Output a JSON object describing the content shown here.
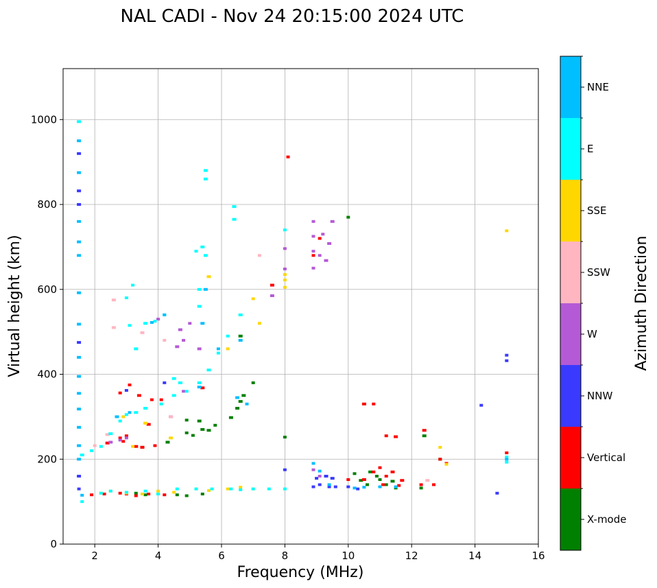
{
  "chart_data": {
    "type": "scatter",
    "title": "NAL CADI - Nov 24 20:15:00 2024 UTC",
    "xlabel": "Frequency (MHz)",
    "ylabel": "Virtual height (km)",
    "xlim": [
      1,
      16
    ],
    "ylim": [
      0,
      1120
    ],
    "xticks": [
      2,
      4,
      6,
      8,
      10,
      12,
      14,
      16
    ],
    "yticks": [
      0,
      200,
      400,
      600,
      800,
      1000
    ],
    "grid": true,
    "colorbar": {
      "label": "Azimuth Direction",
      "placement": "right",
      "categories": [
        {
          "name": "X-mode",
          "color": "#008000"
        },
        {
          "name": "Vertical",
          "color": "#ff0000"
        },
        {
          "name": "NNW",
          "color": "#3a3aff"
        },
        {
          "name": "W",
          "color": "#b55ad6"
        },
        {
          "name": "SSW",
          "color": "#ffb6c1"
        },
        {
          "name": "SSE",
          "color": "#ffd700"
        },
        {
          "name": "E",
          "color": "#00ffff"
        },
        {
          "name": "NNE",
          "color": "#00bfff"
        }
      ]
    },
    "series": [
      {
        "name": "X-mode",
        "points": [
          [
            3.3,
            120
          ],
          [
            3.6,
            116
          ],
          [
            4.0,
            118
          ],
          [
            4.6,
            116
          ],
          [
            4.9,
            114
          ],
          [
            5.4,
            118
          ],
          [
            3.5,
            228
          ],
          [
            4.3,
            240
          ],
          [
            4.9,
            262
          ],
          [
            5.1,
            256
          ],
          [
            5.4,
            270
          ],
          [
            5.6,
            268
          ],
          [
            5.8,
            280
          ],
          [
            6.3,
            298
          ],
          [
            6.5,
            320
          ],
          [
            6.6,
            336
          ],
          [
            6.7,
            350
          ],
          [
            7.0,
            380
          ],
          [
            4.9,
            292
          ],
          [
            5.3,
            290
          ],
          [
            8.0,
            252
          ],
          [
            10.0,
            770
          ],
          [
            10.2,
            166
          ],
          [
            10.4,
            150
          ],
          [
            10.6,
            140
          ],
          [
            10.7,
            170
          ],
          [
            10.9,
            160
          ],
          [
            11.0,
            152
          ],
          [
            11.2,
            140
          ],
          [
            11.4,
            148
          ],
          [
            11.5,
            132
          ],
          [
            12.3,
            132
          ],
          [
            12.4,
            255
          ],
          [
            12.9,
            200
          ],
          [
            6.6,
            490
          ]
        ]
      },
      {
        "name": "Vertical",
        "points": [
          [
            1.9,
            116
          ],
          [
            2.3,
            118
          ],
          [
            2.8,
            120
          ],
          [
            3.0,
            118
          ],
          [
            3.3,
            114
          ],
          [
            3.7,
            118
          ],
          [
            4.2,
            116
          ],
          [
            2.4,
            238
          ],
          [
            2.8,
            250
          ],
          [
            3.0,
            255
          ],
          [
            3.3,
            230
          ],
          [
            3.5,
            228
          ],
          [
            3.9,
            232
          ],
          [
            2.8,
            356
          ],
          [
            3.1,
            375
          ],
          [
            3.4,
            350
          ],
          [
            3.8,
            340
          ],
          [
            4.1,
            340
          ],
          [
            5.4,
            368
          ],
          [
            8.1,
            912
          ],
          [
            8.9,
            680
          ],
          [
            9.1,
            720
          ],
          [
            10.0,
            152
          ],
          [
            10.5,
            152
          ],
          [
            10.8,
            170
          ],
          [
            11.0,
            180
          ],
          [
            11.1,
            140
          ],
          [
            11.2,
            160
          ],
          [
            11.4,
            170
          ],
          [
            11.6,
            138
          ],
          [
            11.7,
            150
          ],
          [
            10.5,
            330
          ],
          [
            10.8,
            330
          ],
          [
            11.2,
            255
          ],
          [
            11.5,
            253
          ],
          [
            12.3,
            140
          ],
          [
            12.7,
            140
          ],
          [
            12.9,
            200
          ],
          [
            13.1,
            190
          ],
          [
            15.0,
            215
          ],
          [
            12.4,
            268
          ],
          [
            7.6,
            610
          ],
          [
            3.7,
            282
          ],
          [
            2.9,
            242
          ]
        ]
      },
      {
        "name": "NNW",
        "points": [
          [
            1.5,
            475
          ],
          [
            1.5,
            832
          ],
          [
            1.5,
            920
          ],
          [
            1.5,
            800
          ],
          [
            1.5,
            160
          ],
          [
            1.5,
            130
          ],
          [
            8.9,
            135
          ],
          [
            9.1,
            140
          ],
          [
            9.4,
            135
          ],
          [
            9.6,
            135
          ],
          [
            10.0,
            135
          ],
          [
            10.3,
            130
          ],
          [
            9.0,
            155
          ],
          [
            9.3,
            160
          ],
          [
            9.5,
            155
          ],
          [
            8.0,
            175
          ],
          [
            15.0,
            432
          ],
          [
            15.0,
            445
          ],
          [
            14.2,
            327
          ],
          [
            14.7,
            120
          ],
          [
            4.2,
            380
          ],
          [
            3.0,
            362
          ]
        ]
      },
      {
        "name": "W",
        "points": [
          [
            8.9,
            760
          ],
          [
            9.2,
            730
          ],
          [
            9.5,
            760
          ],
          [
            8.9,
            690
          ],
          [
            9.1,
            680
          ],
          [
            9.4,
            708
          ],
          [
            8.9,
            650
          ],
          [
            9.3,
            668
          ],
          [
            5.0,
            520
          ],
          [
            4.7,
            505
          ],
          [
            4.6,
            465
          ],
          [
            4.8,
            480
          ],
          [
            2.8,
            245
          ],
          [
            3.0,
            250
          ],
          [
            4.4,
            300
          ],
          [
            4.8,
            360
          ],
          [
            5.3,
            460
          ],
          [
            8.0,
            696
          ],
          [
            8.0,
            648
          ],
          [
            8.9,
            725
          ],
          [
            8.9,
            175
          ],
          [
            9.1,
            160
          ],
          [
            2.5,
            240
          ],
          [
            4.0,
            530
          ],
          [
            7.6,
            585
          ]
        ]
      },
      {
        "name": "SSW",
        "points": [
          [
            2.6,
            510
          ],
          [
            3.5,
            498
          ],
          [
            4.2,
            480
          ],
          [
            4.4,
            300
          ],
          [
            2.0,
            232
          ],
          [
            2.4,
            258
          ],
          [
            12.5,
            150
          ],
          [
            7.2,
            680
          ],
          [
            2.6,
            575
          ]
        ]
      },
      {
        "name": "SSE",
        "points": [
          [
            2.2,
            120
          ],
          [
            2.5,
            125
          ],
          [
            3.0,
            120
          ],
          [
            3.5,
            118
          ],
          [
            4.0,
            125
          ],
          [
            4.5,
            122
          ],
          [
            5.2,
            130
          ],
          [
            5.6,
            126
          ],
          [
            6.2,
            130
          ],
          [
            6.6,
            134
          ],
          [
            7.0,
            130
          ],
          [
            3.6,
            285
          ],
          [
            4.4,
            250
          ],
          [
            3.2,
            230
          ],
          [
            5.6,
            630
          ],
          [
            6.2,
            460
          ],
          [
            7.2,
            520
          ],
          [
            7.0,
            578
          ],
          [
            8.0,
            635
          ],
          [
            8.0,
            622
          ],
          [
            8.0,
            605
          ],
          [
            12.9,
            228
          ],
          [
            13.1,
            188
          ],
          [
            15.0,
            738
          ],
          [
            2.9,
            300
          ]
        ]
      },
      {
        "name": "E",
        "points": [
          [
            1.6,
            210
          ],
          [
            1.9,
            220
          ],
          [
            2.2,
            230
          ],
          [
            2.5,
            260
          ],
          [
            2.8,
            290
          ],
          [
            3.0,
            305
          ],
          [
            3.3,
            310
          ],
          [
            3.6,
            320
          ],
          [
            4.1,
            330
          ],
          [
            4.5,
            350
          ],
          [
            4.9,
            360
          ],
          [
            5.3,
            380
          ],
          [
            5.6,
            410
          ],
          [
            5.9,
            450
          ],
          [
            6.2,
            490
          ],
          [
            6.6,
            540
          ],
          [
            2.2,
            120
          ],
          [
            2.5,
            125
          ],
          [
            3.0,
            122
          ],
          [
            3.6,
            125
          ],
          [
            4.0,
            118
          ],
          [
            4.6,
            130
          ],
          [
            5.2,
            130
          ],
          [
            5.7,
            130
          ],
          [
            6.3,
            130
          ],
          [
            6.6,
            128
          ],
          [
            7.0,
            130
          ],
          [
            7.5,
            130
          ],
          [
            3.1,
            515
          ],
          [
            3.6,
            520
          ],
          [
            3.9,
            525
          ],
          [
            4.2,
            540
          ],
          [
            5.5,
            880
          ],
          [
            5.5,
            860
          ],
          [
            5.2,
            690
          ],
          [
            5.4,
            700
          ],
          [
            5.5,
            680
          ],
          [
            5.3,
            560
          ],
          [
            6.4,
            795
          ],
          [
            6.4,
            765
          ],
          [
            3.2,
            610
          ],
          [
            3.3,
            460
          ],
          [
            4.5,
            390
          ],
          [
            4.7,
            380
          ],
          [
            3.0,
            580
          ],
          [
            1.6,
            100
          ],
          [
            5.3,
            600
          ],
          [
            8.0,
            130
          ],
          [
            8.0,
            740
          ],
          [
            15.0,
            193
          ],
          [
            15.0,
            205
          ],
          [
            1.5,
            995
          ]
        ]
      },
      {
        "name": "NNE",
        "points": [
          [
            1.5,
            950
          ],
          [
            1.5,
            875
          ],
          [
            1.5,
            760
          ],
          [
            1.5,
            712
          ],
          [
            1.5,
            680
          ],
          [
            1.5,
            592
          ],
          [
            1.5,
            518
          ],
          [
            1.5,
            440
          ],
          [
            1.5,
            395
          ],
          [
            1.5,
            355
          ],
          [
            1.5,
            318
          ],
          [
            1.5,
            275
          ],
          [
            1.5,
            232
          ],
          [
            1.5,
            200
          ],
          [
            1.6,
            115
          ],
          [
            2.7,
            300
          ],
          [
            3.1,
            310
          ],
          [
            3.8,
            522
          ],
          [
            4.2,
            540
          ],
          [
            5.3,
            370
          ],
          [
            5.9,
            460
          ],
          [
            6.6,
            480
          ],
          [
            6.8,
            330
          ],
          [
            8.9,
            190
          ],
          [
            9.1,
            172
          ],
          [
            9.4,
            140
          ],
          [
            10.2,
            132
          ],
          [
            10.5,
            134
          ],
          [
            11.0,
            135
          ],
          [
            11.5,
            135
          ],
          [
            15.0,
            200
          ],
          [
            5.5,
            600
          ],
          [
            5.4,
            520
          ],
          [
            6.5,
            345
          ]
        ]
      }
    ]
  }
}
